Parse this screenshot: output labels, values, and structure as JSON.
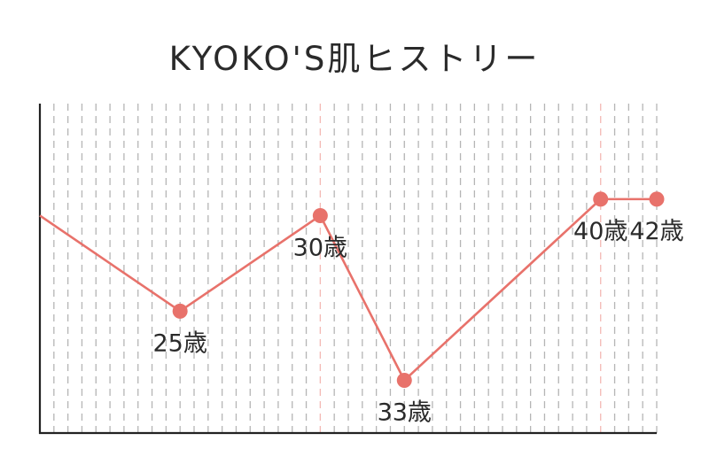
{
  "chart_data": {
    "type": "line",
    "title": "KYOKO'S肌ヒストリー",
    "xlabel": "",
    "ylabel": "",
    "xlim": [
      20,
      42
    ],
    "ylim": [
      0,
      10
    ],
    "grid": {
      "vertical": true,
      "horizontal": false
    },
    "colors": {
      "line": "#e8726b",
      "grid": "#b5b5b5",
      "highlight_grid": "#f3b9b4",
      "axis": "#222222"
    },
    "series": [
      {
        "points": [
          {
            "x": 20,
            "y": 6.6
          },
          {
            "x": 25,
            "y": 3.7
          },
          {
            "x": 30,
            "y": 6.6
          },
          {
            "x": 33,
            "y": 1.6
          },
          {
            "x": 40,
            "y": 7.1
          },
          {
            "x": 42,
            "y": 7.1
          }
        ]
      }
    ],
    "annotations": [
      {
        "x": 25,
        "text": "25歳",
        "placement": "below"
      },
      {
        "x": 30,
        "text": "30歳",
        "placement": "below"
      },
      {
        "x": 33,
        "text": "33歳",
        "placement": "below"
      },
      {
        "x": 40,
        "text": "40歳",
        "placement": "below"
      },
      {
        "x": 42,
        "text": "42歳",
        "placement": "below"
      }
    ],
    "highlight_x": [
      30,
      40
    ]
  }
}
